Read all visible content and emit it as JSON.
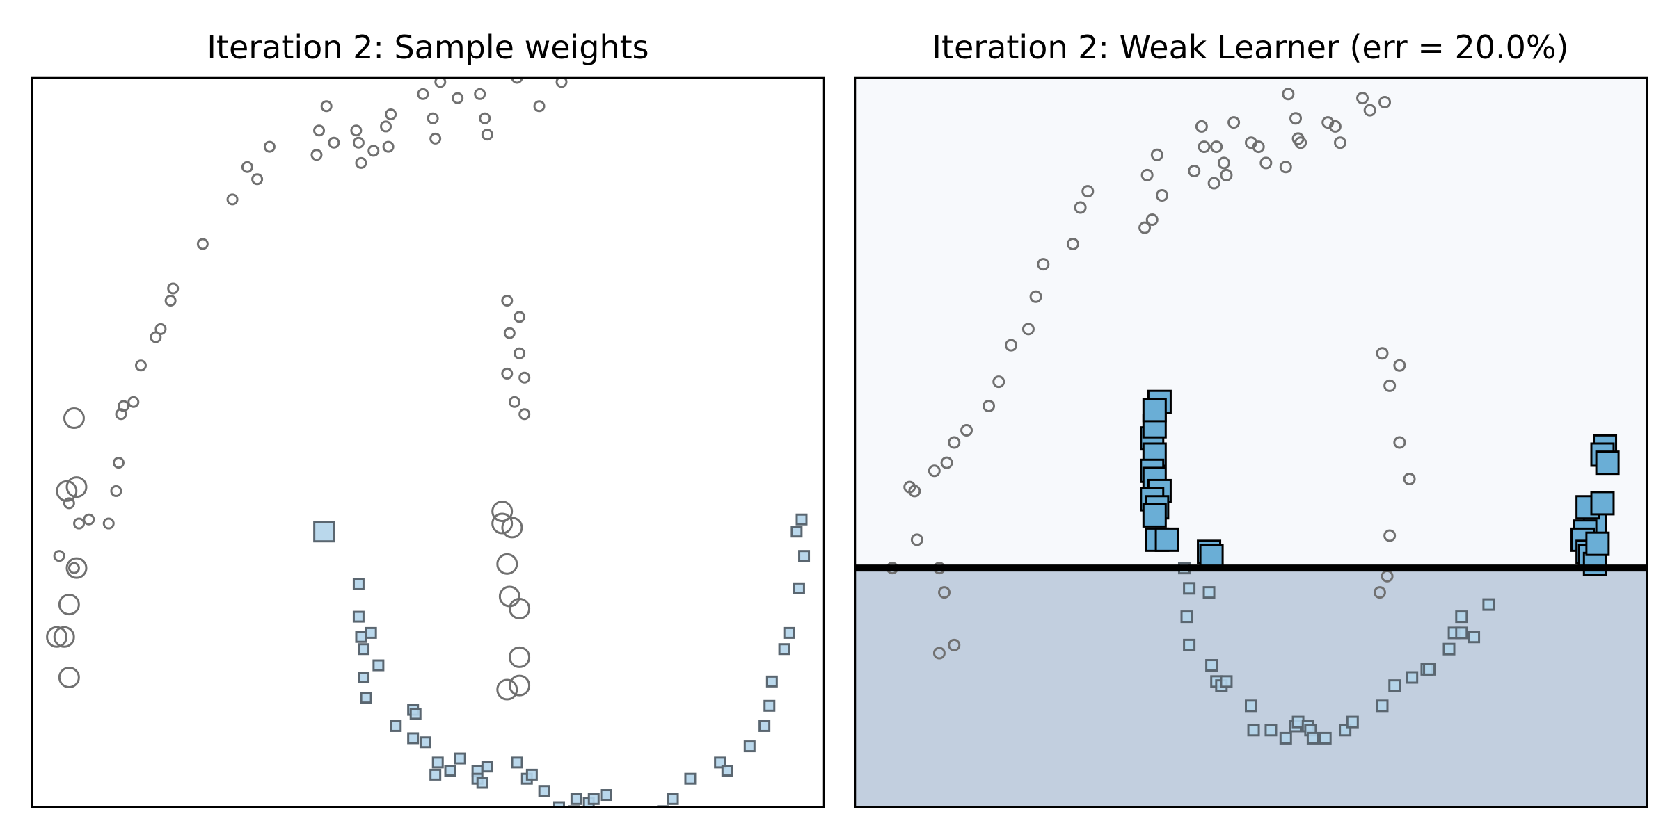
{
  "chart_data": [
    {
      "type": "scatter",
      "title": "Iteration 2: Sample weights",
      "xlim": [
        -1.1,
        2.1
      ],
      "ylim": [
        -0.65,
        1.15
      ],
      "axes_ticks": "none",
      "series": [
        {
          "name": "",
          "marker": "circle",
          "fill": "none",
          "stroke": "#707070",
          "points": [
            [
              0.86,
              1.15,
              1
            ],
            [
              0.95,
              1.08,
              1
            ],
            [
              1.04,
              1.14,
              1
            ],
            [
              0.71,
              1.11,
              1
            ],
            [
              0.73,
              1.05,
              1
            ],
            [
              0.74,
              1.01,
              1
            ],
            [
              0.48,
              1.11,
              1
            ],
            [
              0.52,
              1.05,
              1
            ],
            [
              0.53,
              1.0,
              1
            ],
            [
              0.62,
              1.1,
              1
            ],
            [
              0.55,
              1.14,
              1
            ],
            [
              0.35,
              1.06,
              1
            ],
            [
              0.33,
              1.03,
              1
            ],
            [
              0.34,
              0.98,
              1
            ],
            [
              0.21,
              1.02,
              1
            ],
            [
              0.22,
              0.99,
              1
            ],
            [
              0.28,
              0.97,
              1
            ],
            [
              0.23,
              0.94,
              1
            ],
            [
              0.12,
              0.99,
              1
            ],
            [
              0.09,
              1.08,
              1
            ],
            [
              0.06,
              1.02,
              1
            ],
            [
              0.05,
              0.96,
              1
            ],
            [
              -0.14,
              0.98,
              1
            ],
            [
              -0.19,
              0.9,
              1
            ],
            [
              -0.23,
              0.93,
              1
            ],
            [
              -0.29,
              0.85,
              1
            ],
            [
              -0.41,
              0.74,
              1
            ],
            [
              -0.53,
              0.63,
              1
            ],
            [
              -0.54,
              0.6,
              1
            ],
            [
              -0.58,
              0.53,
              1
            ],
            [
              -0.6,
              0.51,
              1
            ],
            [
              -0.66,
              0.44,
              1
            ],
            [
              -0.73,
              0.34,
              1
            ],
            [
              -0.69,
              0.35,
              1
            ],
            [
              -0.74,
              0.32,
              1
            ],
            [
              -0.75,
              0.2,
              1
            ],
            [
              -0.76,
              0.13,
              1
            ],
            [
              -0.79,
              0.05,
              1
            ],
            [
              -0.95,
              0.1,
              1
            ],
            [
              -0.87,
              0.06,
              1
            ],
            [
              -0.91,
              0.05,
              1
            ],
            [
              -0.93,
              -0.06,
              1
            ],
            [
              -0.99,
              -0.03,
              1
            ]
          ]
        },
        {
          "name": "",
          "marker": "circle",
          "fill": "none",
          "stroke": "#707070",
          "points": [
            [
              0.82,
              0.6,
              1
            ],
            [
              0.87,
              0.56,
              1
            ],
            [
              0.83,
              0.52,
              1
            ],
            [
              0.87,
              0.47,
              1
            ],
            [
              0.82,
              0.42,
              1
            ],
            [
              0.89,
              0.41,
              1
            ],
            [
              0.85,
              0.35,
              1
            ],
            [
              0.89,
              0.32,
              1
            ],
            [
              0.8,
              0.08,
              4
            ],
            [
              0.8,
              0.05,
              4
            ],
            [
              0.84,
              0.04,
              4
            ],
            [
              0.82,
              -0.05,
              4
            ],
            [
              0.83,
              -0.13,
              4
            ],
            [
              0.87,
              -0.16,
              4
            ],
            [
              0.87,
              -0.28,
              4
            ],
            [
              0.87,
              -0.35,
              4
            ],
            [
              0.82,
              -0.36,
              4
            ],
            [
              -0.93,
              0.31,
              4
            ],
            [
              -0.92,
              0.14,
              4
            ],
            [
              -0.96,
              0.13,
              4
            ],
            [
              -0.92,
              -0.06,
              4
            ],
            [
              -0.95,
              -0.15,
              4
            ],
            [
              -0.97,
              -0.23,
              4
            ],
            [
              -1.0,
              -0.23,
              4
            ],
            [
              -0.95,
              -0.33,
              4
            ]
          ]
        },
        {
          "name": "",
          "marker": "square",
          "fill": "#b3d4ea",
          "stroke": "#5a6670",
          "points": [
            [
              0.22,
              -0.1,
              1
            ],
            [
              0.22,
              -0.18,
              1
            ],
            [
              0.23,
              -0.23,
              1
            ],
            [
              0.27,
              -0.22,
              1
            ],
            [
              0.24,
              -0.26,
              1
            ],
            [
              0.24,
              -0.33,
              1
            ],
            [
              0.3,
              -0.3,
              1
            ],
            [
              0.25,
              -0.38,
              1
            ],
            [
              0.37,
              -0.45,
              1
            ],
            [
              0.44,
              -0.41,
              1
            ],
            [
              0.45,
              -0.42,
              1
            ],
            [
              0.44,
              -0.48,
              1
            ],
            [
              0.49,
              -0.49,
              1
            ],
            [
              0.54,
              -0.54,
              1
            ],
            [
              0.53,
              -0.57,
              1
            ],
            [
              0.59,
              -0.56,
              1
            ],
            [
              0.63,
              -0.53,
              1
            ],
            [
              0.7,
              -0.56,
              1
            ],
            [
              0.74,
              -0.55,
              1
            ],
            [
              0.7,
              -0.58,
              1
            ],
            [
              0.72,
              -0.59,
              1
            ],
            [
              0.86,
              -0.54,
              1
            ],
            [
              0.9,
              -0.58,
              1
            ],
            [
              0.92,
              -0.57,
              1
            ],
            [
              0.97,
              -0.61,
              1
            ],
            [
              1.03,
              -0.65,
              1
            ],
            [
              1.1,
              -0.63,
              1
            ],
            [
              1.09,
              -0.66,
              1
            ],
            [
              1.15,
              -0.64,
              1
            ],
            [
              1.17,
              -0.63,
              1
            ],
            [
              1.22,
              -0.62,
              1
            ],
            [
              1.27,
              -0.67,
              1
            ],
            [
              1.31,
              -0.68,
              1
            ],
            [
              1.33,
              -0.7,
              1
            ],
            [
              1.45,
              -0.66,
              1
            ],
            [
              1.49,
              -0.63,
              1
            ],
            [
              1.56,
              -0.58,
              1
            ],
            [
              1.68,
              -0.54,
              1
            ],
            [
              1.71,
              -0.56,
              1
            ],
            [
              1.8,
              -0.5,
              1
            ],
            [
              1.86,
              -0.45,
              1
            ],
            [
              1.88,
              -0.4,
              1
            ],
            [
              1.89,
              -0.34,
              1
            ],
            [
              1.94,
              -0.26,
              1
            ],
            [
              1.96,
              -0.22,
              1
            ],
            [
              2.0,
              -0.11,
              1
            ],
            [
              2.02,
              -0.03,
              1
            ],
            [
              1.99,
              0.03,
              1
            ],
            [
              2.01,
              0.06,
              1
            ]
          ]
        },
        {
          "name": "",
          "marker": "square",
          "fill": "#b3d4ea",
          "stroke": "#5a6670",
          "points": [
            [
              0.08,
              0.03,
              4
            ]
          ]
        }
      ]
    },
    {
      "type": "scatter",
      "title": "Iteration 2: Weak Learner (err = 20.0%)",
      "xlim": [
        -1.1,
        2.1
      ],
      "ylim": [
        -0.65,
        1.15
      ],
      "axes_ticks": "none",
      "decision_boundary": {
        "y": -0.06,
        "color": "#000000"
      },
      "regions": [
        {
          "where": "y > -0.06",
          "color": "#f7f9fc"
        },
        {
          "where": "y < -0.06",
          "color": "#c2cfdf"
        }
      ],
      "series": [
        {
          "name": "",
          "marker": "circle",
          "fill": "none",
          "stroke": "#707070",
          "points": [
            [
              0.95,
              1.1
            ],
            [
              0.98,
              1.07
            ],
            [
              1.04,
              1.09
            ],
            [
              0.81,
              1.04
            ],
            [
              0.84,
              1.03
            ],
            [
              0.86,
              0.99
            ],
            [
              0.65,
              1.11
            ],
            [
              0.68,
              1.05
            ],
            [
              0.69,
              1.0
            ],
            [
              0.7,
              0.99
            ],
            [
              0.64,
              0.93
            ],
            [
              0.43,
              1.04
            ],
            [
              0.5,
              0.99
            ],
            [
              0.53,
              0.98
            ],
            [
              0.56,
              0.94
            ],
            [
              0.36,
              0.98
            ],
            [
              0.39,
              0.94
            ],
            [
              0.4,
              0.91
            ],
            [
              0.35,
              0.89
            ],
            [
              0.3,
              1.03
            ],
            [
              0.31,
              0.98
            ],
            [
              0.27,
              0.92
            ],
            [
              0.12,
              0.96
            ],
            [
              0.08,
              0.91
            ],
            [
              0.14,
              0.86
            ],
            [
              0.1,
              0.8
            ],
            [
              0.07,
              0.78
            ],
            [
              -0.16,
              0.87
            ],
            [
              -0.19,
              0.83
            ],
            [
              -0.22,
              0.74
            ],
            [
              -0.34,
              0.69
            ],
            [
              -0.37,
              0.61
            ],
            [
              -0.4,
              0.53
            ],
            [
              -0.47,
              0.49
            ],
            [
              -0.52,
              0.4
            ],
            [
              -0.56,
              0.34
            ],
            [
              -0.65,
              0.28
            ],
            [
              -0.7,
              0.25
            ],
            [
              -0.73,
              0.2
            ],
            [
              -0.78,
              0.18
            ],
            [
              -0.86,
              0.13
            ],
            [
              -0.88,
              0.14
            ],
            [
              -0.85,
              0.01
            ],
            [
              -0.95,
              -0.06
            ],
            [
              1.03,
              0.47
            ],
            [
              1.1,
              0.44
            ],
            [
              1.06,
              0.39
            ],
            [
              1.1,
              0.25
            ],
            [
              1.14,
              0.16
            ],
            [
              1.06,
              0.02
            ],
            [
              1.05,
              -0.08
            ],
            [
              1.02,
              -0.12
            ],
            [
              -0.76,
              -0.06
            ],
            [
              -0.74,
              -0.12
            ],
            [
              -0.7,
              -0.25
            ],
            [
              -0.76,
              -0.27
            ]
          ]
        },
        {
          "name": "",
          "marker": "square",
          "fill": "#b3d4ea",
          "stroke": "#5a6670",
          "points": [
            [
              0.23,
              -0.06
            ],
            [
              0.25,
              -0.11
            ],
            [
              0.24,
              -0.18
            ],
            [
              0.33,
              -0.12
            ],
            [
              0.25,
              -0.25
            ],
            [
              0.34,
              -0.3
            ],
            [
              0.36,
              -0.34
            ],
            [
              0.38,
              -0.35
            ],
            [
              0.4,
              -0.34
            ],
            [
              0.5,
              -0.4
            ],
            [
              0.51,
              -0.46
            ],
            [
              0.58,
              -0.46
            ],
            [
              0.64,
              -0.48
            ],
            [
              0.68,
              -0.45
            ],
            [
              0.69,
              -0.44
            ],
            [
              0.73,
              -0.45
            ],
            [
              0.74,
              -0.46
            ],
            [
              0.75,
              -0.48
            ],
            [
              0.8,
              -0.48
            ],
            [
              0.88,
              -0.46
            ],
            [
              0.91,
              -0.44
            ],
            [
              1.03,
              -0.4
            ],
            [
              1.08,
              -0.35
            ],
            [
              1.15,
              -0.33
            ],
            [
              1.21,
              -0.31
            ],
            [
              1.22,
              -0.31
            ],
            [
              1.3,
              -0.26
            ],
            [
              1.32,
              -0.22
            ],
            [
              1.35,
              -0.22
            ],
            [
              1.4,
              -0.23
            ],
            [
              1.35,
              -0.18
            ],
            [
              1.46,
              -0.15
            ]
          ]
        },
        {
          "name": "",
          "marker": "square",
          "fill": "#6aaed6",
          "stroke": "#000000",
          "points": [
            [
              0.1,
              0.26
            ],
            [
              0.11,
              0.22
            ],
            [
              0.1,
              0.18
            ],
            [
              0.11,
              0.16
            ],
            [
              0.13,
              0.13
            ],
            [
              0.1,
              0.11
            ],
            [
              0.12,
              0.09
            ],
            [
              0.11,
              0.07
            ],
            [
              0.12,
              0.01
            ],
            [
              0.16,
              0.01
            ],
            [
              0.11,
              0.29
            ],
            [
              0.13,
              0.35
            ],
            [
              0.11,
              0.33
            ],
            [
              0.33,
              -0.02
            ],
            [
              0.34,
              -0.03
            ],
            [
              1.93,
              0.24
            ],
            [
              1.92,
              0.22
            ],
            [
              1.94,
              0.2
            ],
            [
              1.89,
              0.05
            ],
            [
              1.86,
              0.09
            ],
            [
              1.85,
              0.03
            ],
            [
              1.84,
              0.01
            ],
            [
              1.86,
              -0.02
            ],
            [
              1.87,
              -0.03
            ],
            [
              1.89,
              -0.05
            ],
            [
              1.9,
              0.0
            ],
            [
              1.92,
              0.1
            ]
          ]
        }
      ]
    }
  ]
}
